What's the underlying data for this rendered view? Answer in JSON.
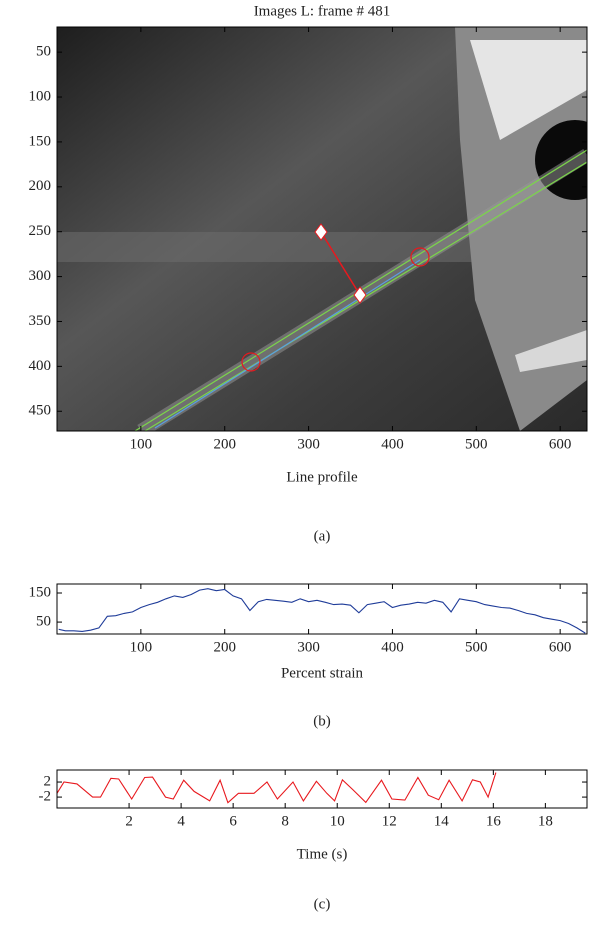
{
  "chart_data": [
    {
      "type": "image",
      "title": "Images L: frame # 481",
      "xlabel": "Line profile",
      "panel_label": "(a)",
      "xlim": [
        0,
        632
      ],
      "ylim": [
        22,
        472
      ],
      "y_reversed": true,
      "xticks": [
        100,
        200,
        300,
        400,
        500,
        600
      ],
      "yticks": [
        50,
        100,
        150,
        200,
        250,
        300,
        350,
        400,
        450
      ]
    },
    {
      "type": "line",
      "xlabel": "Percent strain",
      "panel_label": "(b)",
      "xlim": [
        0,
        632
      ],
      "ylim": [
        9,
        181
      ],
      "xticks": [
        100,
        200,
        300,
        400,
        500,
        600
      ],
      "yticks": [
        50,
        150
      ],
      "x": [
        2,
        10,
        20,
        30,
        40,
        50,
        60,
        70,
        80,
        90,
        100,
        110,
        120,
        130,
        140,
        150,
        160,
        170,
        180,
        190,
        200,
        210,
        220,
        230,
        240,
        250,
        260,
        270,
        280,
        290,
        300,
        310,
        320,
        330,
        340,
        350,
        360,
        370,
        380,
        390,
        400,
        410,
        420,
        430,
        440,
        450,
        460,
        470,
        480,
        490,
        500,
        510,
        520,
        530,
        540,
        550,
        560,
        570,
        580,
        590,
        600,
        610,
        620,
        630
      ],
      "series": [
        {
          "color": "#1f3c99",
          "values": [
            25,
            20,
            20,
            18,
            22,
            30,
            70,
            72,
            80,
            85,
            100,
            110,
            118,
            130,
            140,
            135,
            145,
            160,
            165,
            158,
            162,
            140,
            130,
            90,
            120,
            128,
            125,
            122,
            118,
            130,
            120,
            125,
            118,
            110,
            112,
            108,
            82,
            110,
            115,
            120,
            100,
            108,
            112,
            118,
            115,
            125,
            118,
            85,
            130,
            125,
            120,
            110,
            105,
            100,
            98,
            90,
            80,
            75,
            65,
            60,
            55,
            45,
            30,
            12
          ]
        }
      ]
    },
    {
      "type": "line",
      "xlabel": "Time (s)",
      "panel_label": "(c)",
      "xlim": [
        -0.77,
        19.6
      ],
      "ylim": [
        -4.9,
        5.2
      ],
      "xticks": [
        2,
        4,
        6,
        8,
        10,
        12,
        14,
        16,
        18
      ],
      "yticks": [
        2,
        -2
      ],
      "x": [
        -0.77,
        -0.5,
        0,
        0.6,
        0.9,
        1.3,
        1.6,
        2.1,
        2.6,
        2.9,
        3.4,
        3.7,
        4.1,
        4.5,
        5.1,
        5.5,
        5.8,
        6.2,
        6.8,
        7.3,
        7.7,
        8.3,
        8.7,
        9.2,
        9.6,
        9.9,
        10.2,
        10.6,
        11.1,
        11.7,
        12.1,
        12.6,
        13.1,
        13.5,
        13.9,
        14.3,
        14.8,
        15.2,
        15.5,
        15.8,
        16.1
      ],
      "series": [
        {
          "color": "#e8191e",
          "values": [
            -1,
            2,
            1.5,
            -2,
            -2,
            3,
            2.8,
            -2.5,
            3.2,
            3.3,
            -2,
            -2.5,
            2.5,
            -0.5,
            -3,
            2.5,
            -3.5,
            -1,
            -1,
            2,
            -2.5,
            2,
            -3,
            2.2,
            -1,
            -3,
            2.6,
            0,
            -3.4,
            2.5,
            -2.5,
            -2.8,
            3.2,
            -1.5,
            -2.7,
            2.5,
            -3,
            2.6,
            2,
            -2,
            4.5
          ]
        }
      ]
    }
  ]
}
